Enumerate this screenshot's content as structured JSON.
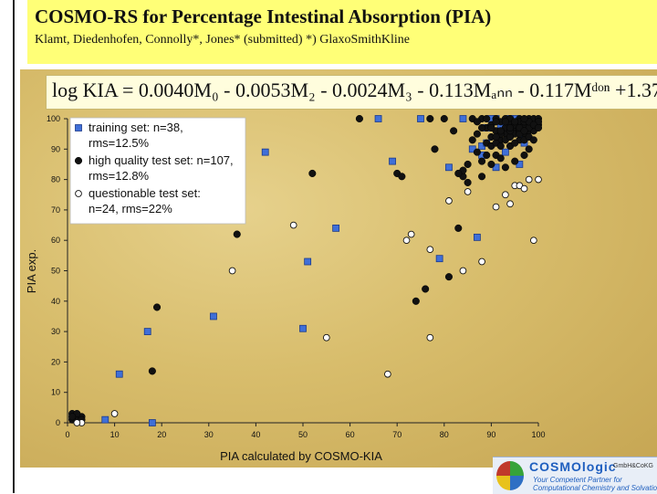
{
  "slide": {
    "title": "COSMO-RS for Percentage Intestinal Absorption (PIA)",
    "subtitle": "Klamt, Diedenhofen, Connolly*, Jones* (submitted) *) GlaxoSmithKline",
    "formula": "log KIA = 0.0040M₀ - 0.0053M₂ - 0.0024M₃ - 0.113Mₐₙₙ - 0.117Mᵈᵒⁿ +1.37"
  },
  "logo": {
    "name": "COSMOlogic",
    "small": "GmbH&CoKG",
    "tagline1": "Your Competent Partner for",
    "tagline2": "Computational Chemistry and Solvation"
  },
  "colors": {
    "training": "#3f6fd8",
    "high_quality": "#111111",
    "questionable": "#ffffff"
  },
  "chart_data": {
    "type": "scatter",
    "title": "",
    "xlabel": "PIA calculated by COSMO-KIA",
    "ylabel": "PIA exp.",
    "xlim": [
      0,
      100
    ],
    "ylim": [
      0,
      100
    ],
    "xticks": [
      0,
      10,
      20,
      30,
      40,
      50,
      60,
      70,
      80,
      90,
      100
    ],
    "yticks": [
      0,
      10,
      20,
      30,
      40,
      50,
      60,
      70,
      80,
      90,
      100
    ],
    "grid": false,
    "legend_position": "top-left",
    "series": [
      {
        "name": "training set",
        "legend": [
          "training set: n=38,",
          "rms=12.5%"
        ],
        "marker": "square",
        "points": [
          [
            1,
            2
          ],
          [
            2,
            1
          ],
          [
            8,
            1
          ],
          [
            18,
            0
          ],
          [
            11,
            16
          ],
          [
            17,
            30
          ],
          [
            31,
            35
          ],
          [
            42,
            89
          ],
          [
            50,
            31
          ],
          [
            51,
            53
          ],
          [
            57,
            64
          ],
          [
            66,
            100
          ],
          [
            69,
            86
          ],
          [
            79,
            54
          ],
          [
            75,
            100
          ],
          [
            81,
            84
          ],
          [
            84,
            100
          ],
          [
            86,
            90
          ],
          [
            87,
            61
          ],
          [
            88,
            91
          ],
          [
            89,
            92
          ],
          [
            91,
            100
          ],
          [
            92,
            98
          ],
          [
            93,
            99
          ],
          [
            94,
            96
          ],
          [
            95,
            100
          ],
          [
            96,
            98
          ],
          [
            96,
            85
          ],
          [
            97,
            92
          ],
          [
            97,
            94
          ],
          [
            93,
            89
          ],
          [
            91,
            84
          ],
          [
            89,
            97
          ],
          [
            90,
            100
          ],
          [
            95,
            96
          ],
          [
            94,
            100
          ],
          [
            88,
            88
          ],
          [
            92,
            96
          ]
        ]
      },
      {
        "name": "high quality test set",
        "legend": [
          "high quality test set: n=107,",
          "rms=12.8%"
        ],
        "marker": "filled-circle",
        "points": [
          [
            1,
            3
          ],
          [
            2,
            2
          ],
          [
            2,
            1
          ],
          [
            1,
            1
          ],
          [
            3,
            2
          ],
          [
            3,
            1
          ],
          [
            2,
            3
          ],
          [
            1,
            2
          ],
          [
            18,
            17
          ],
          [
            19,
            38
          ],
          [
            29,
            88
          ],
          [
            36,
            62
          ],
          [
            52,
            82
          ],
          [
            62,
            100
          ],
          [
            70,
            82
          ],
          [
            71,
            81
          ],
          [
            74,
            40
          ],
          [
            76,
            44
          ],
          [
            77,
            100
          ],
          [
            78,
            90
          ],
          [
            81,
            48
          ],
          [
            83,
            64
          ],
          [
            80,
            100
          ],
          [
            82,
            96
          ],
          [
            84,
            81
          ],
          [
            85,
            79
          ],
          [
            86,
            100
          ],
          [
            87,
            95
          ],
          [
            87,
            89
          ],
          [
            88,
            86
          ],
          [
            88,
            81
          ],
          [
            89,
            92
          ],
          [
            89,
            97
          ],
          [
            90,
            98
          ],
          [
            90,
            91
          ],
          [
            91,
            88
          ],
          [
            91,
            100
          ],
          [
            92,
            93
          ],
          [
            92,
            87
          ],
          [
            93,
            84
          ],
          [
            93,
            100
          ],
          [
            94,
            100
          ],
          [
            94,
            91
          ],
          [
            95,
            86
          ],
          [
            95,
            97
          ],
          [
            96,
            93
          ],
          [
            96,
            100
          ],
          [
            97,
            95
          ],
          [
            97,
            88
          ],
          [
            98,
            100
          ],
          [
            98,
            98
          ],
          [
            98,
            90
          ],
          [
            99,
            99
          ],
          [
            99,
            100
          ],
          [
            90,
            94
          ],
          [
            91,
            96
          ],
          [
            92,
            99
          ],
          [
            93,
            95
          ],
          [
            94,
            98
          ],
          [
            95,
            95
          ],
          [
            96,
            99
          ],
          [
            97,
            98
          ],
          [
            98,
            96
          ],
          [
            99,
            97
          ],
          [
            88,
            100
          ],
          [
            87,
            99
          ],
          [
            86,
            93
          ],
          [
            85,
            85
          ],
          [
            84,
            83
          ],
          [
            83,
            82
          ],
          [
            89,
            88
          ],
          [
            90,
            85
          ],
          [
            91,
            92
          ],
          [
            92,
            91
          ],
          [
            93,
            93
          ],
          [
            94,
            94
          ],
          [
            95,
            92
          ],
          [
            96,
            96
          ],
          [
            97,
            93
          ],
          [
            98,
            94
          ],
          [
            99,
            96
          ],
          [
            100,
            100
          ],
          [
            100,
            98
          ],
          [
            89,
            100
          ],
          [
            91,
            99
          ],
          [
            92,
            95
          ],
          [
            93,
            97
          ],
          [
            94,
            96
          ],
          [
            95,
            98
          ],
          [
            96,
            95
          ],
          [
            97,
            99
          ],
          [
            98,
            97
          ],
          [
            99,
            93
          ],
          [
            100,
            99
          ],
          [
            90,
            97
          ],
          [
            91,
            94
          ],
          [
            92,
            96
          ],
          [
            93,
            99
          ],
          [
            94,
            97
          ],
          [
            95,
            99
          ],
          [
            96,
            97
          ],
          [
            97,
            96
          ],
          [
            98,
            99
          ],
          [
            99,
            98
          ],
          [
            100,
            97
          ],
          [
            97,
            100
          ],
          [
            88,
            97
          ]
        ]
      },
      {
        "name": "questionable test set",
        "legend": [
          "questionable test set:",
          "n=24, rms=22%"
        ],
        "marker": "open-circle",
        "points": [
          [
            3,
            0
          ],
          [
            10,
            3
          ],
          [
            2,
            0
          ],
          [
            35,
            50
          ],
          [
            48,
            65
          ],
          [
            55,
            28
          ],
          [
            68,
            16
          ],
          [
            72,
            60
          ],
          [
            73,
            62
          ],
          [
            77,
            28
          ],
          [
            84,
            50
          ],
          [
            88,
            53
          ],
          [
            77,
            57
          ],
          [
            81,
            73
          ],
          [
            85,
            76
          ],
          [
            91,
            71
          ],
          [
            93,
            75
          ],
          [
            95,
            78
          ],
          [
            99,
            60
          ],
          [
            96,
            78
          ],
          [
            98,
            80
          ],
          [
            97,
            77
          ],
          [
            100,
            80
          ],
          [
            94,
            72
          ]
        ]
      }
    ]
  }
}
